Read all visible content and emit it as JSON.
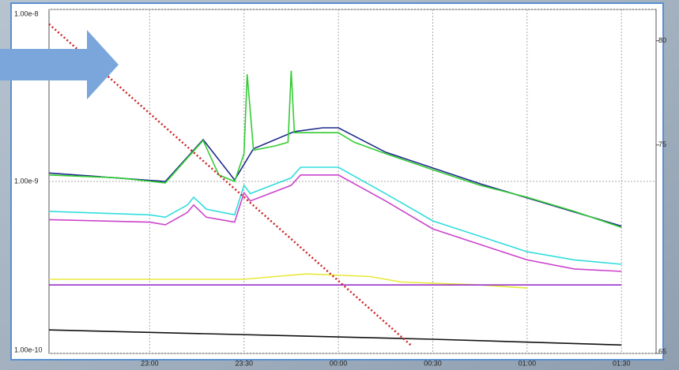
{
  "chart_data": {
    "type": "line",
    "ylog": true,
    "ylim": [
      1e-10,
      1e-08
    ],
    "yticks": [
      {
        "value": 1e-10,
        "label": "1.00e-10"
      },
      {
        "value": 1e-09,
        "label": "1.00e-9"
      },
      {
        "value": 1e-08,
        "label": "1.00e-8"
      }
    ],
    "y2lim": [
      65,
      81.5
    ],
    "y2ticks": [
      65,
      75,
      80
    ],
    "xlim": [
      "22:28",
      "01:41"
    ],
    "xticks": [
      "23:00",
      "23:30",
      "00:00",
      "00:30",
      "01:00",
      "01:30"
    ],
    "grid": true,
    "series": [
      {
        "color": "#1f2a8a",
        "x": [
          "22:28",
          "23:05",
          "23:17",
          "23:27",
          "23:33",
          "23:46",
          "23:55",
          "00:00",
          "00:15",
          "00:45",
          "01:30"
        ],
        "values": [
          1.12e-09,
          1e-09,
          1.75e-09,
          1.02e-09,
          1.55e-09,
          1.95e-09,
          2.05e-09,
          2.05e-09,
          1.48e-09,
          9.7e-10,
          5.5e-10
        ]
      },
      {
        "color": "#33cc33",
        "x": [
          "22:28",
          "22:50",
          "23:05",
          "23:12",
          "23:17",
          "23:22",
          "23:27",
          "23:30",
          "23:31",
          "23:33",
          "23:40",
          "23:44",
          "23:45",
          "23:46",
          "00:00",
          "00:05",
          "00:15",
          "00:30",
          "00:45",
          "01:00",
          "01:15",
          "01:30"
        ],
        "values": [
          1.09e-09,
          1.05e-09,
          9.8e-10,
          1.37e-09,
          1.73e-09,
          1.09e-09,
          1e-09,
          1.45e-09,
          4.2e-09,
          1.52e-09,
          1.61e-09,
          1.69e-09,
          4.4e-09,
          1.92e-09,
          1.92e-09,
          1.69e-09,
          1.45e-09,
          1.17e-09,
          9.5e-10,
          8.1e-10,
          6.7e-10,
          5.4e-10
        ]
      },
      {
        "color": "#cc44cc",
        "x": [
          "22:28",
          "23:00",
          "23:05",
          "23:12",
          "23:14",
          "23:18",
          "23:27",
          "23:30",
          "23:32",
          "23:45",
          "23:48",
          "00:00",
          "00:15",
          "00:30",
          "00:45",
          "01:00",
          "01:15",
          "01:30"
        ],
        "values": [
          6e-10,
          5.8e-10,
          5.6e-10,
          6.6e-10,
          7.3e-10,
          6.2e-10,
          5.8e-10,
          8.6e-10,
          7.7e-10,
          9.5e-10,
          1.09e-09,
          1.09e-09,
          7.7e-10,
          5.3e-10,
          4.3e-10,
          3.5e-10,
          3.1e-10,
          3e-10
        ]
      },
      {
        "color": "#33dddd",
        "x": [
          "22:28",
          "23:00",
          "23:05",
          "23:12",
          "23:14",
          "23:18",
          "23:27",
          "23:30",
          "23:32",
          "23:45",
          "23:48",
          "00:00",
          "00:15",
          "00:30",
          "00:45",
          "01:00",
          "01:15",
          "01:30"
        ],
        "values": [
          6.7e-10,
          6.4e-10,
          6.2e-10,
          7.3e-10,
          8.1e-10,
          6.9e-10,
          6.4e-10,
          9.5e-10,
          8.5e-10,
          1.05e-09,
          1.21e-09,
          1.21e-09,
          8.5e-10,
          5.9e-10,
          4.8e-10,
          3.9e-10,
          3.5e-10,
          3.3e-10
        ]
      },
      {
        "color": "#e8e83a",
        "x": [
          "22:28",
          "23:30",
          "23:40",
          "23:50",
          "00:10",
          "00:20",
          "00:45",
          "01:00"
        ],
        "values": [
          2.7e-10,
          2.7e-10,
          2.8e-10,
          2.9e-10,
          2.8e-10,
          2.6e-10,
          2.5e-10,
          2.4e-10
        ]
      },
      {
        "color": "#9933cc",
        "x": [
          "22:28",
          "01:30"
        ],
        "values": [
          2.5e-10,
          2.5e-10
        ]
      },
      {
        "color": "#111111",
        "x": [
          "22:28",
          "00:30",
          "01:30"
        ],
        "values": [
          1.37e-10,
          1.21e-10,
          1.12e-10
        ]
      },
      {
        "color": "#cc2222",
        "axis": "y2",
        "style": "dotted",
        "x": [
          "22:28",
          "00:23"
        ],
        "values": [
          80.8,
          65.4
        ]
      }
    ]
  }
}
